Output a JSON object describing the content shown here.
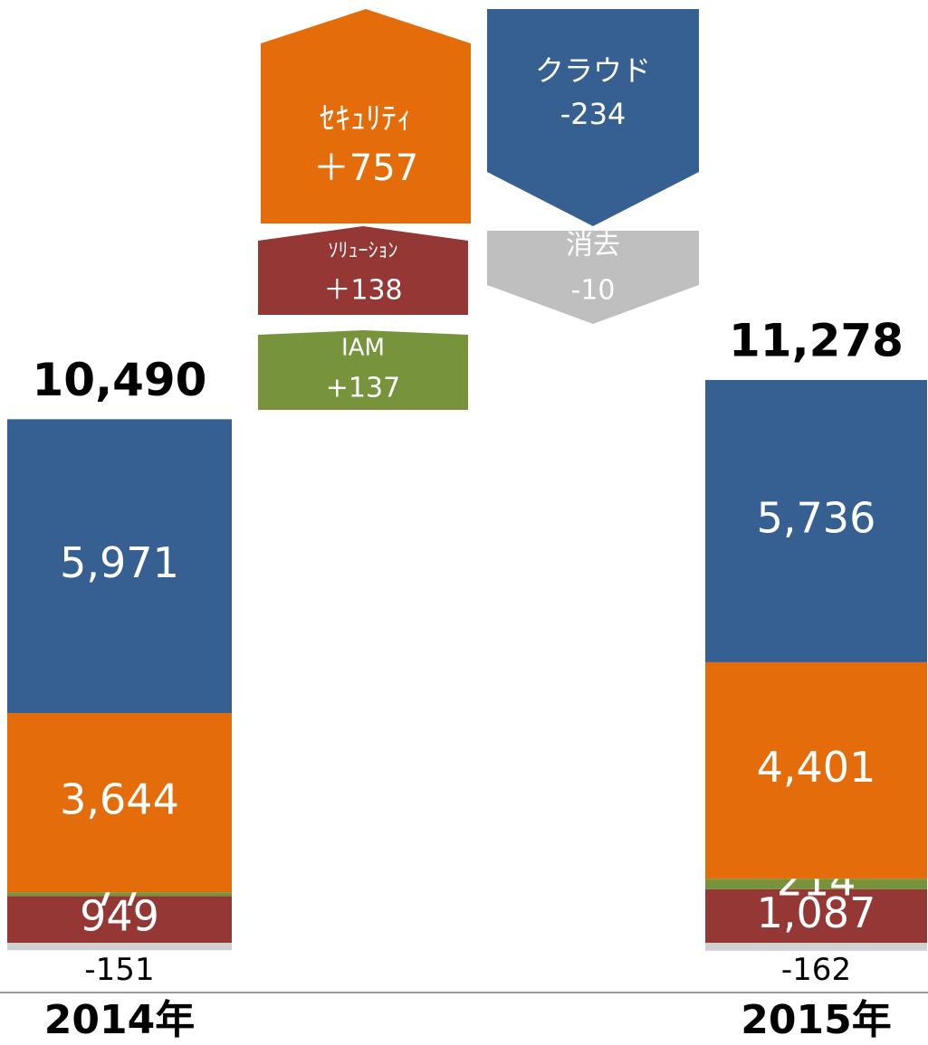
{
  "chart_data": {
    "type": "waterfall",
    "categories": [
      "2014年",
      "2015年"
    ],
    "totals": [
      10490,
      11278
    ],
    "total_labels": [
      "10,490",
      "11,278"
    ],
    "series": [
      {
        "name": "クラウド",
        "color": "#366092",
        "values": [
          5971,
          5736
        ],
        "value_labels": [
          "5,971",
          "5,736"
        ],
        "change": -234,
        "change_label": "-234"
      },
      {
        "name": "ｾｷｭﾘﾃｨ",
        "color": "#e46c0a",
        "values": [
          3644,
          4401
        ],
        "value_labels": [
          "3,644",
          "4,401"
        ],
        "change": 757,
        "change_label": "＋757"
      },
      {
        "name": "IAM",
        "color": "#77933c",
        "values": [
          77,
          214
        ],
        "change": 137,
        "change_label": "+137"
      },
      {
        "name": "ｿﾘｭｰｼｮﾝ",
        "color": "#953735",
        "values": [
          949,
          1087
        ],
        "value_labels": [
          "949",
          "1,087"
        ],
        "change": 138,
        "change_label": "＋138"
      },
      {
        "name": "消去",
        "color": "#d0d0d0",
        "values": [
          -151,
          -162
        ],
        "change": -10,
        "change_label": "-10"
      }
    ]
  }
}
